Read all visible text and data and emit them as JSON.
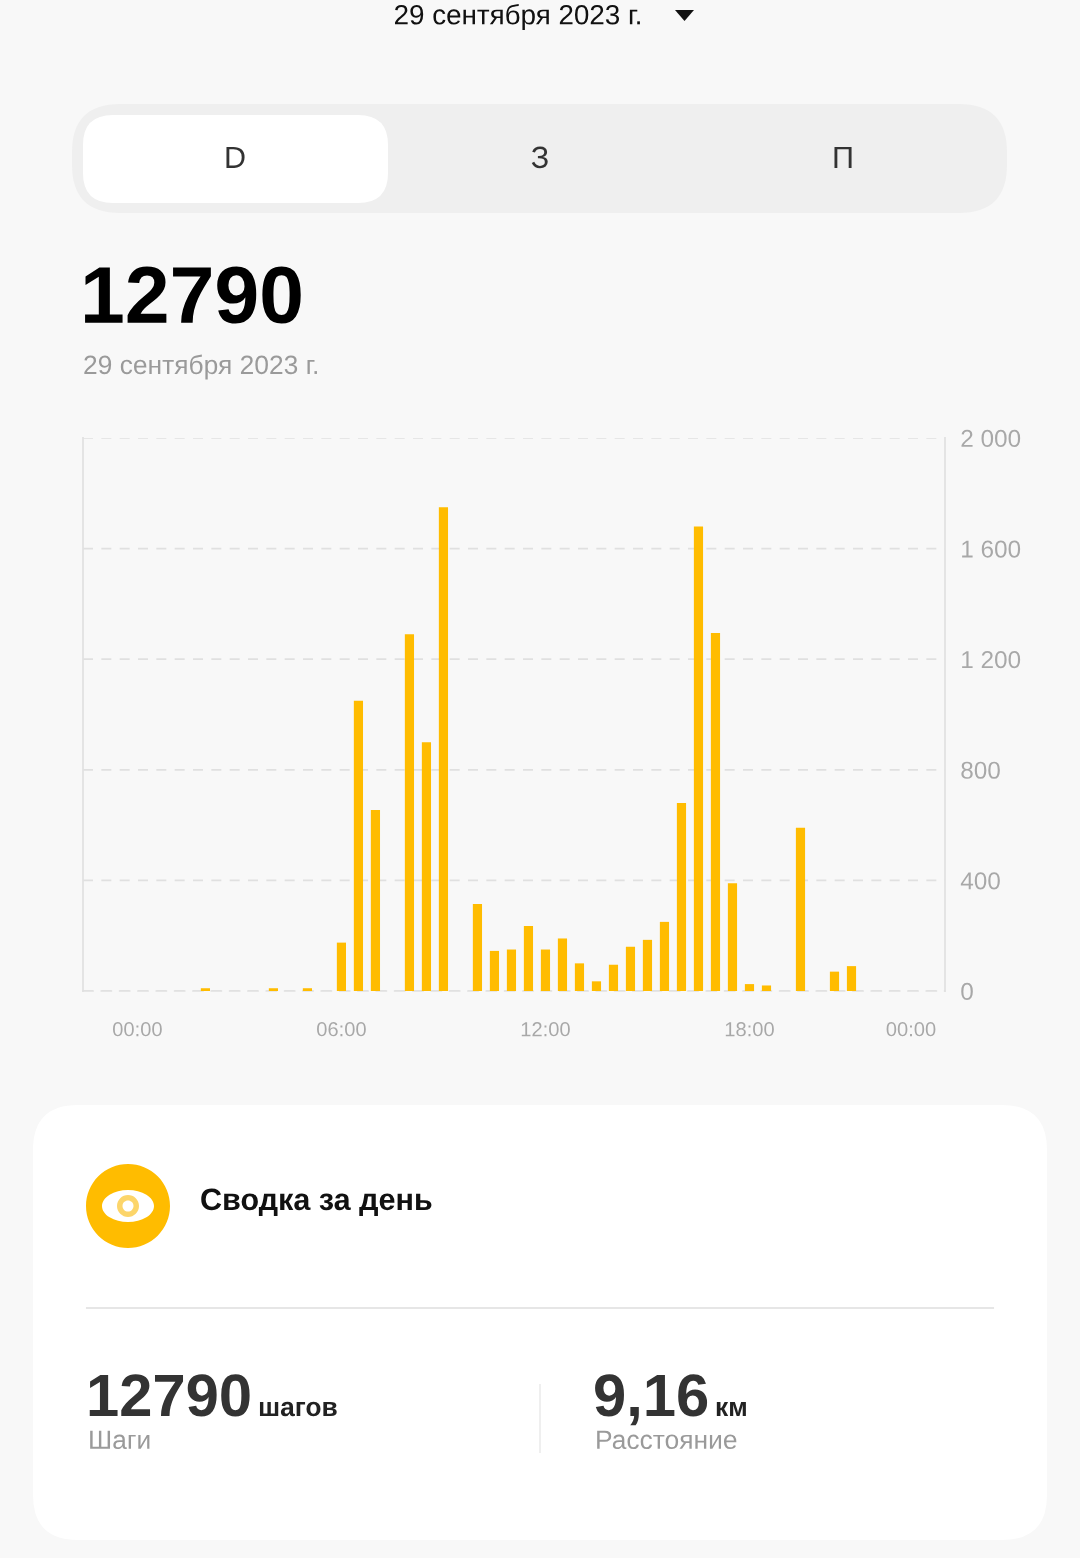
{
  "chart_data": {
    "type": "bar",
    "title": "12790",
    "subtitle": "29 сентября 2023 г.",
    "annotations": [
      "29 сентября 2023 г.",
      "D",
      "З",
      "П",
      "Сводка за день",
      "12790",
      "шагов",
      "Шаги",
      "9,16",
      "км",
      "Расстояние"
    ],
    "x": [
      2,
      4,
      5,
      6,
      6.5,
      7,
      8,
      8.5,
      9,
      10,
      10.5,
      11,
      11.5,
      12,
      12.5,
      13,
      13.5,
      14,
      14.5,
      15,
      15.5,
      16,
      16.5,
      17,
      17.5,
      18,
      18.5,
      19.5,
      20.5,
      21
    ],
    "values": [
      10,
      10,
      10,
      175,
      1050,
      655,
      1290,
      900,
      1750,
      315,
      145,
      150,
      235,
      150,
      190,
      100,
      35,
      95,
      160,
      185,
      250,
      680,
      1680,
      1295,
      390,
      25,
      20,
      590,
      70,
      90
    ],
    "color": "#ffbc00",
    "xlim": [
      -1.6,
      23.75
    ],
    "xticks": [
      {
        "value": 0,
        "label": "00:00"
      },
      {
        "value": 6,
        "label": "06:00"
      },
      {
        "value": 12,
        "label": "12:00"
      },
      {
        "value": 18,
        "label": "18:00"
      },
      {
        "value": 22.75,
        "label": "00:00"
      }
    ],
    "ylim": [
      0,
      2000
    ],
    "yticks": [
      {
        "value": 0,
        "label": "0"
      },
      {
        "value": 400,
        "label": "400"
      },
      {
        "value": 800,
        "label": "800"
      },
      {
        "value": 1200,
        "label": "1 200"
      },
      {
        "value": 1600,
        "label": "1 600"
      },
      {
        "value": 2000,
        "label": "2 000"
      }
    ],
    "grid": "y"
  }
}
